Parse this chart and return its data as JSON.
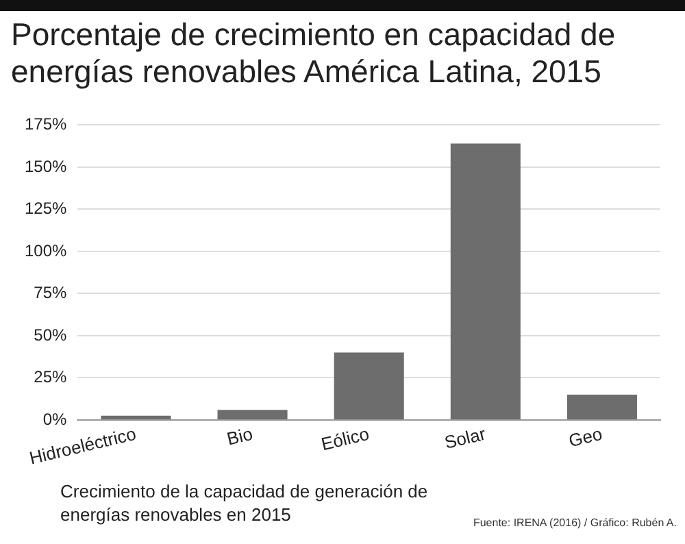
{
  "chart_data": {
    "type": "bar",
    "title": "Porcentaje de crecimiento en capacidad de energías renovables América Latina, 2015",
    "categories": [
      "Hidroeléctrico",
      "Bio",
      "Eólico",
      "Solar",
      "Geo"
    ],
    "values": [
      2.5,
      6,
      40,
      164,
      15
    ],
    "color": "#6d6d6d",
    "ylim": [
      0,
      175
    ],
    "yticks": [
      {
        "value": 0,
        "label": "0%"
      },
      {
        "value": 25,
        "label": "25%"
      },
      {
        "value": 50,
        "label": "50%"
      },
      {
        "value": 75,
        "label": "75%"
      },
      {
        "value": 100,
        "label": "100%"
      },
      {
        "value": 125,
        "label": "125%"
      },
      {
        "value": 150,
        "label": "150%"
      },
      {
        "value": 175,
        "label": "175%"
      }
    ],
    "grid": "y",
    "annotations": [
      "Crecimiento de la capacidad de generación de energías renovables en 2015",
      "Fuente: IRENA (2016) / Gráfico: Rubén A."
    ]
  }
}
